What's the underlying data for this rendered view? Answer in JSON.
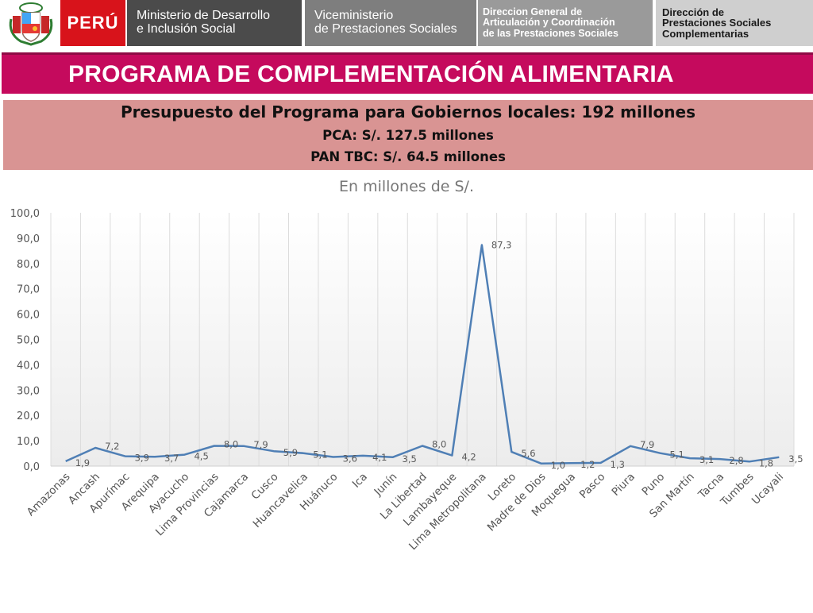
{
  "header": {
    "country": "PERÚ",
    "ministry": [
      "Ministerio de Desarrollo",
      "e Inclusión Social"
    ],
    "vice_ministry": [
      "Viceministerio",
      "de Prestaciones Sociales"
    ],
    "general_direction": [
      "Direccion General de",
      "Articulación y Coordinación",
      "de las Prestaciones Sociales"
    ],
    "direction": [
      "Dirección de",
      "Prestaciones Sociales",
      "Complementarias"
    ]
  },
  "slide_title": "PROGRAMA DE COMPLEMENTACIÓN ALIMENTARIA",
  "budget": {
    "title": "Presupuesto del Programa para Gobiernos locales:  192 millones",
    "pca": "PCA: S/. 127.5 millones",
    "pan_tbc": "PAN TBC: S/. 64.5 millones"
  },
  "colors": {
    "title_band": "#c50a5d",
    "budget_box": "#d99493",
    "line": "#4f7fb5"
  },
  "chart_data": {
    "type": "line",
    "title": "En millones de S/.",
    "xlabel": "",
    "ylabel": "",
    "ylim": [
      0,
      100
    ],
    "yticks": [
      "0,0",
      "10,0",
      "20,0",
      "30,0",
      "40,0",
      "50,0",
      "60,0",
      "70,0",
      "80,0",
      "90,0",
      "100,0"
    ],
    "grid": "vertical category lines",
    "legend": "none",
    "categories": [
      "Amazonas",
      "Ancash",
      "Apurímac",
      "Arequipa",
      "Ayacucho",
      "Lima Provincias",
      "Cajamarca",
      "Cusco",
      "Huancavelica",
      "Huánuco",
      "Ica",
      "Junín",
      "La Libertad",
      "Lambayeque",
      "Lima Metropolitana",
      "Loreto",
      "Madre de Dios",
      "Moquegua",
      "Pasco",
      "Piura",
      "Puno",
      "San Martín",
      "Tacna",
      "Tumbes",
      "Ucayali"
    ],
    "values": [
      1.9,
      7.2,
      3.9,
      3.7,
      4.5,
      8.0,
      7.9,
      5.9,
      5.1,
      3.6,
      4.1,
      3.5,
      8.0,
      4.2,
      87.3,
      5.6,
      1.0,
      1.2,
      1.3,
      7.9,
      5.1,
      3.1,
      2.8,
      1.8,
      3.5
    ],
    "value_labels": [
      "1,9",
      "7,2",
      "3,9",
      "3,7",
      "4,5",
      "8,0",
      "7,9",
      "5,9",
      "5,1",
      "3,6",
      "4,1",
      "3,5",
      "8,0",
      "4,2",
      "87,3",
      "5,6",
      "1,0",
      "1,2",
      "1,3",
      "7,9",
      "5,1",
      "3,1",
      "2,8",
      "1,8",
      "3,5"
    ]
  }
}
